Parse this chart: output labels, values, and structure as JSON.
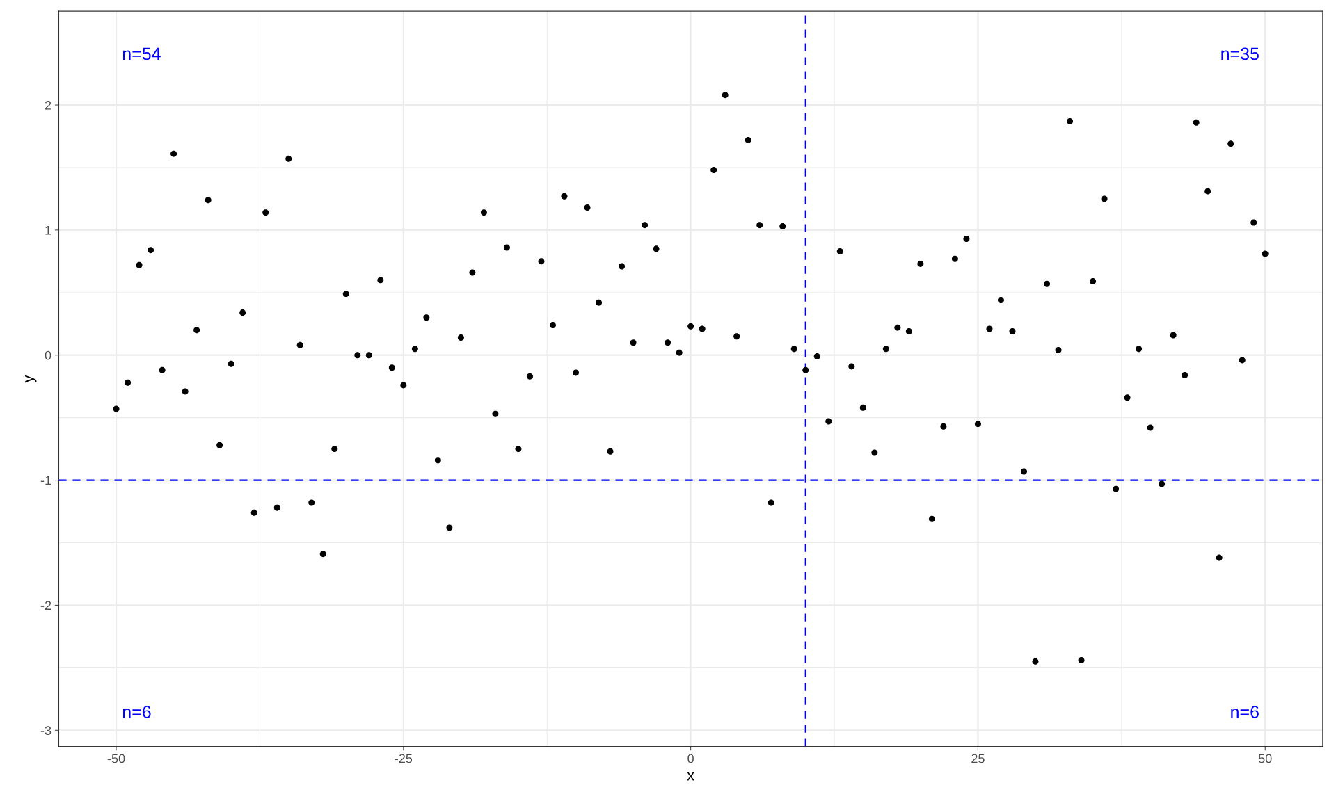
{
  "chart_data": {
    "type": "scatter",
    "xlabel": "x",
    "ylabel": "y",
    "x": [
      -50,
      -49,
      -48,
      -47,
      -46,
      -45,
      -44,
      -43,
      -42,
      -41,
      -40,
      -39,
      -38,
      -37,
      -36,
      -35,
      -34,
      -33,
      -32,
      -31,
      -30,
      -29,
      -28,
      -27,
      -26,
      -25,
      -24,
      -23,
      -22,
      -21,
      -20,
      -19,
      -18,
      -17,
      -16,
      -15,
      -14,
      -13,
      -12,
      -11,
      -10,
      -9,
      -8,
      -7,
      -6,
      -5,
      -4,
      -3,
      -2,
      -1,
      0,
      1,
      2,
      3,
      4,
      5,
      6,
      7,
      8,
      9,
      10,
      11,
      12,
      13,
      14,
      15,
      16,
      17,
      18,
      19,
      20,
      21,
      22,
      23,
      24,
      25,
      26,
      27,
      28,
      29,
      30,
      31,
      32,
      33,
      34,
      35,
      36,
      37,
      38,
      39,
      40,
      41,
      42,
      43,
      44,
      45,
      46,
      47,
      48,
      49,
      50
    ],
    "series": [
      {
        "color": "#000000",
        "values": [
          -0.43,
          -0.22,
          0.72,
          0.84,
          -0.12,
          1.61,
          -0.29,
          0.2,
          1.24,
          -0.72,
          -0.07,
          0.34,
          -1.26,
          1.14,
          -1.22,
          1.57,
          0.08,
          -1.18,
          -1.59,
          -0.75,
          0.49,
          0.0,
          0.0,
          0.6,
          -0.1,
          -0.24,
          0.05,
          0.3,
          -0.84,
          -1.38,
          0.14,
          0.66,
          1.14,
          -0.47,
          0.86,
          -0.75,
          -0.17,
          0.75,
          0.24,
          1.27,
          -0.14,
          1.18,
          0.42,
          -0.77,
          0.71,
          0.1,
          1.04,
          0.85,
          0.1,
          0.02,
          0.23,
          0.21,
          1.48,
          2.08,
          0.15,
          1.72,
          1.04,
          -1.18,
          1.03,
          0.05,
          -0.12,
          -0.01,
          -0.53,
          0.83,
          -0.09,
          -0.42,
          -0.78,
          0.05,
          0.22,
          0.19,
          0.73,
          -1.31,
          -0.57,
          0.77,
          0.93,
          -0.55,
          0.21,
          0.44,
          0.19,
          -0.93,
          -2.45,
          0.57,
          0.04,
          1.87,
          -2.44,
          0.59,
          1.25,
          -1.07,
          -0.34,
          0.05,
          -0.58,
          -1.03,
          0.16,
          -0.16,
          1.86,
          1.31,
          -1.62,
          1.69,
          -0.04,
          1.06,
          0.81
        ]
      }
    ],
    "marker": "circle",
    "grid": true,
    "xlim": [
      -55,
      55
    ],
    "xticks": [
      -50,
      -25,
      0,
      25,
      50
    ],
    "ylim": [
      -3.13,
      2.75
    ],
    "yticks": [
      -3,
      -2,
      -1,
      0,
      1,
      2
    ],
    "ref_lines": [
      {
        "axis": "x",
        "value": 10,
        "color": "#0000ff",
        "line_style": "dashed"
      },
      {
        "axis": "y",
        "value": -1,
        "color": "#0000ff",
        "line_style": "dashed"
      }
    ],
    "annotations": [
      "n=54",
      "n=35",
      "n=6",
      "n=6"
    ]
  }
}
